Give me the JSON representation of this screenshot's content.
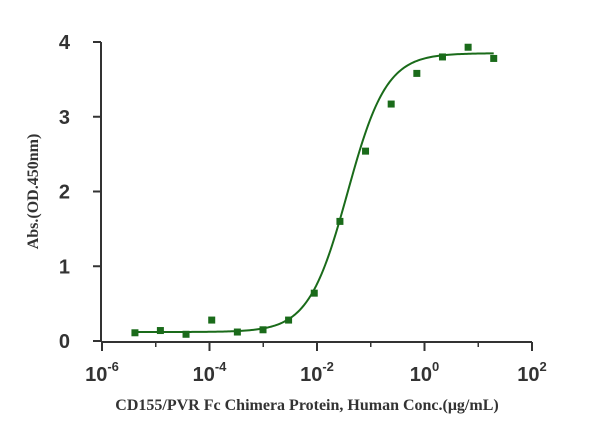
{
  "chart_data": {
    "type": "scatter",
    "xlabel": "CD155/PVR Fc Chimera Protein, Human Conc.(μg/mL)",
    "ylabel": "Abs.(OD.450nm)",
    "x_scale": "log",
    "xlim": [
      1e-06,
      100
    ],
    "ylim": [
      0,
      4
    ],
    "x_ticks": [
      {
        "value": 1e-06,
        "base": "10",
        "exp": "-6"
      },
      {
        "value": 0.0001,
        "base": "10",
        "exp": "-4"
      },
      {
        "value": 0.01,
        "base": "10",
        "exp": "-2"
      },
      {
        "value": 1,
        "base": "10",
        "exp": "0"
      },
      {
        "value": 100,
        "base": "10",
        "exp": "2"
      }
    ],
    "y_ticks": [
      "0",
      "1",
      "2",
      "3",
      "4"
    ],
    "grid": false,
    "legend": "none",
    "series": [
      {
        "kind": "points",
        "color": "#1a6b1a",
        "x": [
          4.1e-06,
          1.22e-05,
          3.66e-05,
          0.00011,
          0.00033,
          0.00099,
          0.00296,
          0.00889,
          0.0267,
          0.08,
          0.24,
          0.72,
          2.16,
          6.48,
          19.4
        ],
        "y": [
          0.11,
          0.14,
          0.09,
          0.28,
          0.12,
          0.15,
          0.28,
          0.64,
          1.6,
          2.54,
          3.17,
          3.58,
          3.8,
          3.93,
          3.78
        ]
      },
      {
        "kind": "fit",
        "model": "4PL",
        "color": "#1a6b1a",
        "bottom": 0.12,
        "top": 3.85,
        "ec50": 0.037,
        "hill": 1.2,
        "x_range": [
          4.1e-06,
          19.4
        ]
      }
    ]
  }
}
